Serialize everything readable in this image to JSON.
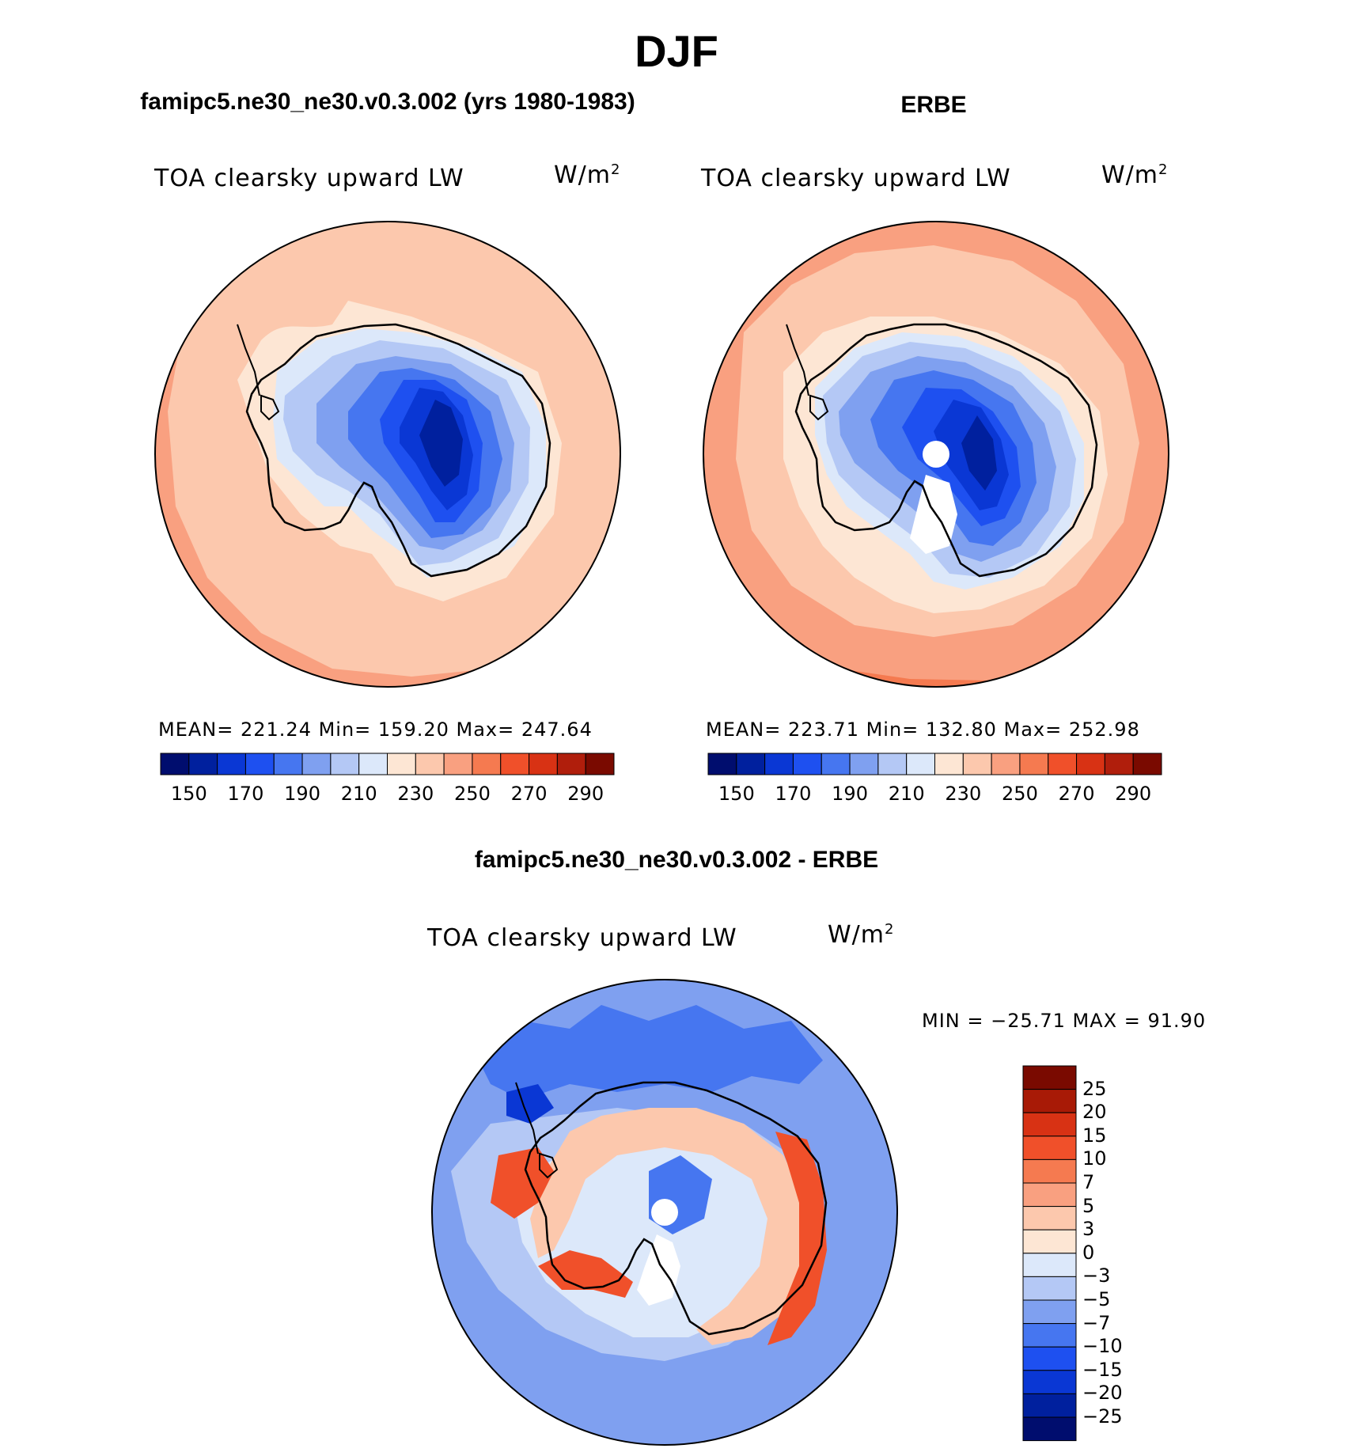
{
  "page": {
    "title": "DJF"
  },
  "panels": {
    "model": {
      "title": "famipc5.ne30_ne30.v0.3.002 (yrs 1980-1983)",
      "variable": "TOA clearsky upward LW",
      "units_base": "W/m",
      "units_exp": "2",
      "stats": "MEAN= 221.24   Min= 159.20   Max= 247.64"
    },
    "obs": {
      "title": "ERBE",
      "variable": "TOA clearsky upward LW",
      "units_base": "W/m",
      "units_exp": "2",
      "stats": "MEAN= 223.71   Min= 132.80   Max= 252.98"
    },
    "diff": {
      "title": "famipc5.ne30_ne30.v0.3.002 - ERBE",
      "variable": "TOA clearsky upward LW",
      "units_base": "W/m",
      "units_exp": "2",
      "minmax": "MIN = −25.71 MAX =  91.90"
    }
  },
  "colorbars": {
    "abs": {
      "colors": [
        "#000d6e",
        "#00209e",
        "#0a37d4",
        "#1e50f0",
        "#4676f0",
        "#7fa0f0",
        "#b4c8f5",
        "#dce8fa",
        "#fde6d4",
        "#fcc8ad",
        "#f9a080",
        "#f57a50",
        "#f0502a",
        "#d83214",
        "#b01e0c",
        "#7a0a00"
      ],
      "labels": [
        "150",
        "170",
        "190",
        "210",
        "230",
        "250",
        "270",
        "290"
      ]
    },
    "diff": {
      "colors_top_to_bottom": [
        "#7a0a00",
        "#a81a06",
        "#d83214",
        "#f0502a",
        "#f57a50",
        "#f9a080",
        "#fcc8ad",
        "#fde6d4",
        "#dce8fa",
        "#b4c8f5",
        "#7fa0f0",
        "#4676f0",
        "#1e50f0",
        "#0a37d4",
        "#00209e",
        "#000d6e"
      ],
      "labels": [
        "25",
        "20",
        "15",
        "10",
        "7",
        "5",
        "3",
        "0",
        "−3",
        "−5",
        "−7",
        "−10",
        "−15",
        "−20",
        "−25"
      ]
    }
  },
  "map_colors": {
    "ocean_low": "#fcc8ad",
    "ocean_mid": "#f9a080",
    "ocean_high": "#f57a50",
    "coast_band": "#fde6d4",
    "ice_edge": "#dce8fa",
    "ice_1": "#b4c8f5",
    "ice_2": "#7fa0f0",
    "ice_3": "#4676f0",
    "ice_4": "#1e50f0",
    "ice_5": "#0a37d4",
    "ice_6": "#00209e",
    "diff_ocean": "#7fa0f0",
    "diff_light": "#b4c8f5",
    "diff_pale": "#dce8fa",
    "diff_warm": "#fcc8ad",
    "diff_hot": "#f0502a",
    "diff_dark": "#4676f0"
  }
}
